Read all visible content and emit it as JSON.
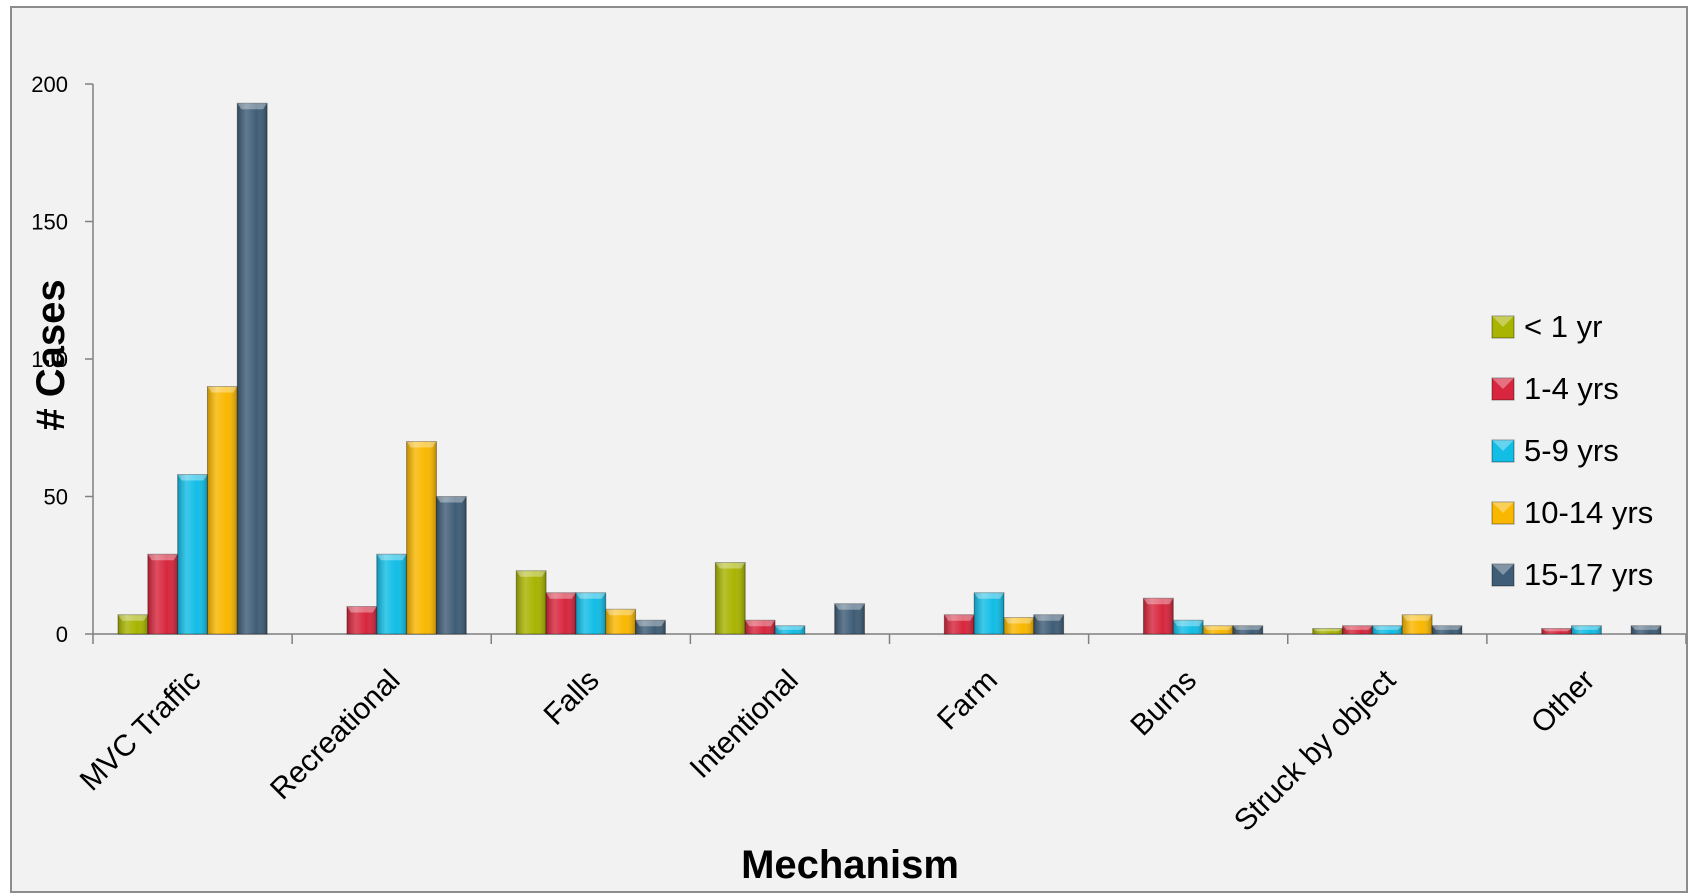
{
  "chart_data": {
    "type": "bar",
    "title": "",
    "xlabel": "Mechanism",
    "ylabel": "# Cases",
    "ylim": [
      0,
      200
    ],
    "yticks": [
      0,
      50,
      100,
      150,
      200
    ],
    "ytick_labels": [
      "0",
      "50",
      "100",
      "150",
      "200"
    ],
    "grid": false,
    "legend_position": "right",
    "categories": [
      "MVC Traffic",
      "Recreational",
      "Falls",
      "Intentional",
      "Farm",
      "Burns",
      "Struck by object",
      "Other"
    ],
    "series": [
      {
        "name": "< 1 yr",
        "color": "#a8b400",
        "values": [
          7,
          0,
          23,
          26,
          0,
          0,
          2,
          0
        ]
      },
      {
        "name": "1-4 yrs",
        "color": "#d7263d",
        "values": [
          29,
          10,
          15,
          5,
          7,
          13,
          3,
          2
        ]
      },
      {
        "name": "5-9 yrs",
        "color": "#12bde6",
        "values": [
          58,
          29,
          15,
          3,
          15,
          5,
          3,
          3
        ]
      },
      {
        "name": "10-14 yrs",
        "color": "#f9b700",
        "values": [
          90,
          70,
          9,
          0,
          6,
          3,
          7,
          0
        ]
      },
      {
        "name": "15-17 yrs",
        "color": "#3f5d77",
        "values": [
          193,
          50,
          5,
          11,
          7,
          3,
          3,
          3
        ]
      }
    ]
  }
}
